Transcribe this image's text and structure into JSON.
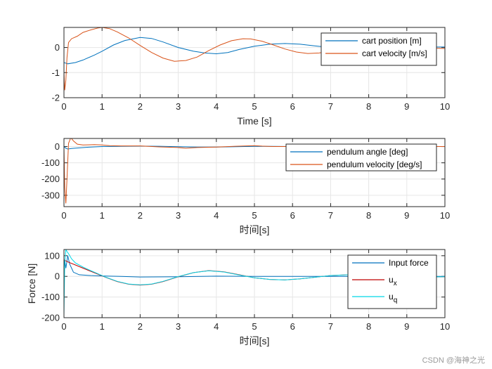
{
  "watermark": "CSDN @海神之光",
  "chart_data": [
    {
      "type": "line",
      "title": "",
      "xlabel": "Time [s]",
      "ylabel": "",
      "xlim": [
        0,
        10
      ],
      "ylim": [
        -2,
        0.8
      ],
      "xticks": [
        "0",
        "1",
        "2",
        "3",
        "4",
        "5",
        "6",
        "7",
        "8",
        "9",
        "10"
      ],
      "yticks": [
        "-2",
        "-1",
        "0"
      ],
      "ytick_values": [
        -2,
        -1,
        0
      ],
      "grid": true,
      "legend_position": "top-right",
      "series": [
        {
          "name": "cart position [m]",
          "color": "#0072BD",
          "x": [
            0,
            0.1,
            0.3,
            0.5,
            0.8,
            1.0,
            1.3,
            1.6,
            2.0,
            2.3,
            2.6,
            3.0,
            3.4,
            3.7,
            4.0,
            4.3,
            4.6,
            5.0,
            5.4,
            5.8,
            6.2,
            6.6,
            7.0,
            7.5,
            8.0,
            8.5,
            9.0,
            9.5,
            10.0
          ],
          "y": [
            -0.6,
            -0.65,
            -0.6,
            -0.5,
            -0.3,
            -0.15,
            0.1,
            0.28,
            0.4,
            0.36,
            0.22,
            0.0,
            -0.15,
            -0.22,
            -0.25,
            -0.2,
            -0.08,
            0.05,
            0.13,
            0.16,
            0.13,
            0.06,
            0.0,
            -0.05,
            -0.06,
            -0.03,
            0.0,
            0.02,
            0.02
          ]
        },
        {
          "name": "cart velocity [m/s]",
          "color": "#D95319",
          "x": [
            0,
            0.02,
            0.05,
            0.08,
            0.12,
            0.2,
            0.35,
            0.5,
            0.7,
            0.9,
            1.0,
            1.2,
            1.4,
            1.7,
            2.0,
            2.3,
            2.6,
            2.9,
            3.2,
            3.5,
            3.8,
            4.1,
            4.4,
            4.7,
            4.9,
            5.2,
            5.5,
            5.8,
            6.1,
            6.4,
            6.7,
            7.0,
            7.4,
            7.8,
            8.2,
            8.6,
            9.0,
            9.5,
            10.0
          ],
          "y": [
            -1.0,
            -1.7,
            -1.3,
            -0.4,
            0.2,
            0.35,
            0.45,
            0.6,
            0.7,
            0.78,
            0.8,
            0.75,
            0.62,
            0.38,
            0.08,
            -0.2,
            -0.42,
            -0.55,
            -0.52,
            -0.38,
            -0.12,
            0.1,
            0.27,
            0.35,
            0.34,
            0.25,
            0.1,
            -0.06,
            -0.18,
            -0.24,
            -0.22,
            -0.14,
            -0.04,
            0.06,
            0.1,
            0.08,
            0.03,
            -0.02,
            -0.04
          ]
        }
      ]
    },
    {
      "type": "line",
      "title": "",
      "xlabel": "时间[s]",
      "ylabel": "",
      "xlim": [
        0,
        10
      ],
      "ylim": [
        -370,
        50
      ],
      "xticks": [
        "0",
        "1",
        "2",
        "3",
        "4",
        "5",
        "6",
        "7",
        "8",
        "9",
        "10"
      ],
      "yticks": [
        "-300",
        "-200",
        "-100",
        "0"
      ],
      "ytick_values": [
        -300,
        -200,
        -100,
        0
      ],
      "grid": true,
      "legend_position": "top-right",
      "series": [
        {
          "name": "pendulum angle [deg]",
          "color": "#0072BD",
          "x": [
            0,
            0.05,
            0.1,
            0.2,
            0.4,
            0.7,
            1.0,
            1.5,
            2.0,
            2.5,
            3.0,
            3.5,
            4.0,
            4.5,
            5.0,
            5.5,
            6.0,
            7.0,
            8.0,
            9.0,
            10.0
          ],
          "y": [
            0,
            -10,
            -15,
            -12,
            -8,
            -3,
            0,
            2,
            3,
            2,
            -1,
            -3,
            -3,
            -1,
            1,
            1,
            0,
            0,
            0,
            0,
            0
          ]
        },
        {
          "name": "pendulum velocity [deg/s]",
          "color": "#D95319",
          "x": [
            0,
            0.02,
            0.05,
            0.08,
            0.12,
            0.18,
            0.25,
            0.35,
            0.5,
            0.8,
            1.0,
            1.2,
            1.5,
            2.0,
            2.5,
            3.0,
            3.2,
            3.5,
            4.0,
            4.5,
            5.0,
            5.2,
            5.5,
            6.0,
            7.0,
            8.0,
            9.0,
            10.0
          ],
          "y": [
            0,
            -250,
            -350,
            -200,
            20,
            55,
            35,
            15,
            10,
            12,
            10,
            6,
            4,
            4,
            -2,
            -6,
            -10,
            -6,
            -3,
            2,
            6,
            3,
            0,
            0,
            0,
            0,
            0,
            0
          ]
        }
      ]
    },
    {
      "type": "line",
      "title": "",
      "xlabel": "时间[s]",
      "ylabel": "Force [N]",
      "xlim": [
        0,
        10
      ],
      "ylim": [
        -200,
        130
      ],
      "xticks": [
        "0",
        "1",
        "2",
        "3",
        "4",
        "5",
        "6",
        "7",
        "8",
        "9",
        "10"
      ],
      "yticks": [
        "-200",
        "-100",
        "0",
        "100"
      ],
      "ytick_values": [
        -200,
        -100,
        0,
        100
      ],
      "grid": true,
      "legend_position": "top-right",
      "series": [
        {
          "name": "Input force",
          "color": "#0072BD",
          "x": [
            0,
            0.02,
            0.05,
            0.1,
            0.15,
            0.25,
            0.4,
            0.7,
            1.0,
            1.5,
            2.0,
            3.0,
            4.0,
            5.0,
            6.0,
            7.0,
            8.0,
            9.0,
            10.0
          ],
          "y": [
            0,
            80,
            40,
            100,
            60,
            20,
            8,
            4,
            2,
            0,
            -3,
            -2,
            1,
            0,
            0,
            0,
            0,
            0,
            0
          ]
        },
        {
          "name": "u",
          "subscript": "x",
          "color": "#C00000",
          "x": [
            0,
            0.1,
            0.3,
            0.5,
            0.7,
            0.9,
            1.1,
            1.4,
            1.7,
            2.0,
            2.3,
            2.6,
            3.0,
            3.4,
            3.8,
            4.2,
            4.6,
            5.0,
            5.4,
            5.8,
            6.2,
            6.6,
            7.0,
            7.5,
            8.0,
            8.5,
            9.0,
            9.5,
            10.0
          ],
          "y": [
            80,
            70,
            55,
            40,
            25,
            10,
            -5,
            -25,
            -38,
            -42,
            -38,
            -25,
            -2,
            18,
            28,
            22,
            8,
            -7,
            -15,
            -17,
            -12,
            -4,
            4,
            8,
            7,
            3,
            -1,
            -3,
            -2
          ]
        },
        {
          "name": "u",
          "subscript": "q",
          "color": "#00D8E8",
          "x": [
            0,
            0.02,
            0.05,
            0.08,
            0.12,
            0.2,
            0.3,
            0.5,
            0.7,
            0.9,
            1.1,
            1.4,
            1.7,
            2.0,
            2.3,
            2.6,
            3.0,
            3.4,
            3.8,
            4.2,
            4.6,
            5.0,
            5.4,
            5.8,
            6.2,
            6.6,
            7.0,
            7.5,
            8.0,
            8.5,
            9.0,
            9.5,
            10.0
          ],
          "y": [
            -190,
            60,
            130,
            120,
            110,
            85,
            65,
            45,
            28,
            12,
            -4,
            -24,
            -37,
            -41,
            -37,
            -24,
            -1,
            18,
            27,
            21,
            7,
            -7,
            -15,
            -17,
            -12,
            -4,
            4,
            8,
            7,
            3,
            -1,
            -3,
            -2
          ]
        }
      ]
    }
  ]
}
